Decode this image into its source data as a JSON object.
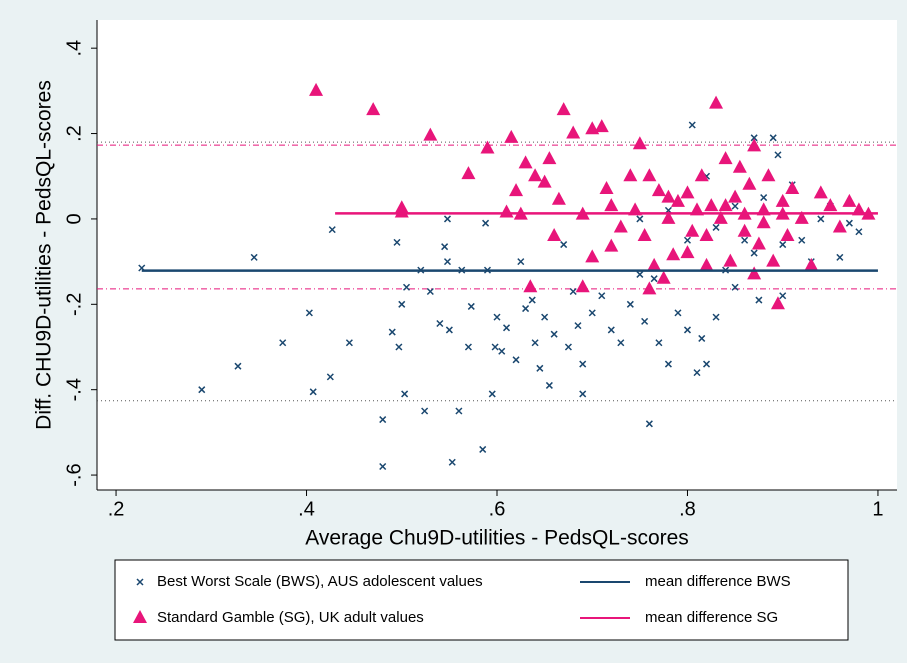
{
  "chart_data": {
    "type": "scatter",
    "y_label": "Diff. CHU9D-utilities - PedsQL-scores",
    "x_label": "Average Chu9D-utilities - PedsQL-scores",
    "xlim": [
      0.18,
      1.02
    ],
    "ylim": [
      -0.635,
      0.466
    ],
    "xticks": [
      {
        "value": 0.2,
        "label": ".2"
      },
      {
        "value": 0.4,
        "label": ".4"
      },
      {
        "value": 0.6,
        "label": ".6"
      },
      {
        "value": 0.8,
        "label": ".8"
      },
      1
    ],
    "yticks": [
      {
        "value": -0.6,
        "label": "-.6"
      },
      {
        "value": -0.4,
        "label": "-.4"
      },
      {
        "value": -0.2,
        "label": "-.2"
      },
      0,
      {
        "value": 0.2,
        "label": ".2"
      },
      {
        "value": 0.4,
        "label": ".4"
      }
    ],
    "series": [
      {
        "name": "Best Worst Scale (BWS), AUS adolescent values",
        "color": "#1a476f",
        "marker": "x",
        "x": [
          0.227,
          0.29,
          0.328,
          0.345,
          0.375,
          0.403,
          0.407,
          0.425,
          0.427,
          0.445,
          0.48,
          0.48,
          0.49,
          0.495,
          0.497,
          0.5,
          0.503,
          0.505,
          0.52,
          0.524,
          0.53,
          0.54,
          0.545,
          0.548,
          0.548,
          0.55,
          0.553,
          0.56,
          0.563,
          0.57,
          0.573,
          0.585,
          0.588,
          0.59,
          0.595,
          0.598,
          0.6,
          0.605,
          0.61,
          0.62,
          0.625,
          0.63,
          0.637,
          0.64,
          0.645,
          0.65,
          0.655,
          0.66,
          0.67,
          0.675,
          0.68,
          0.685,
          0.69,
          0.69,
          0.7,
          0.71,
          0.72,
          0.73,
          0.74,
          0.75,
          0.755,
          0.76,
          0.765,
          0.77,
          0.78,
          0.79,
          0.8,
          0.805,
          0.81,
          0.815,
          0.82,
          0.83,
          0.84,
          0.85,
          0.86,
          0.87,
          0.875,
          0.88,
          0.89,
          0.895,
          0.9,
          0.91,
          0.92,
          0.93,
          0.94,
          0.95,
          0.96,
          0.97,
          0.98,
          0.75,
          0.78,
          0.8,
          0.82,
          0.85,
          0.9,
          0.87,
          0.83
        ],
        "values": [
          -0.115,
          -0.4,
          -0.345,
          -0.09,
          -0.29,
          -0.22,
          -0.405,
          -0.37,
          -0.025,
          -0.29,
          -0.47,
          -0.58,
          -0.265,
          -0.055,
          -0.3,
          -0.2,
          -0.41,
          -0.16,
          -0.12,
          -0.45,
          -0.17,
          -0.245,
          -0.065,
          -0.1,
          0.0,
          -0.26,
          -0.57,
          -0.45,
          -0.12,
          -0.3,
          -0.205,
          -0.54,
          -0.01,
          -0.12,
          -0.41,
          -0.3,
          -0.23,
          -0.31,
          -0.255,
          -0.33,
          -0.1,
          -0.21,
          -0.19,
          -0.29,
          -0.35,
          -0.23,
          -0.39,
          -0.27,
          -0.06,
          -0.3,
          -0.17,
          -0.25,
          -0.41,
          -0.34,
          -0.22,
          -0.18,
          -0.26,
          -0.29,
          -0.2,
          -0.13,
          -0.24,
          -0.48,
          -0.14,
          -0.29,
          -0.34,
          -0.22,
          -0.26,
          0.22,
          -0.36,
          -0.28,
          -0.34,
          -0.23,
          -0.12,
          -0.16,
          -0.05,
          0.19,
          -0.19,
          0.05,
          0.19,
          0.15,
          -0.18,
          0.08,
          -0.05,
          -0.1,
          0.0,
          0.03,
          -0.09,
          -0.01,
          -0.03,
          0.0,
          0.02,
          -0.05,
          0.1,
          0.03,
          -0.06,
          -0.08,
          -0.02
        ]
      },
      {
        "name": "Standard Gamble (SG), UK adult values",
        "color": "#e8157a",
        "marker": "triangle",
        "x": [
          0.41,
          0.47,
          0.5,
          0.5,
          0.53,
          0.57,
          0.59,
          0.61,
          0.615,
          0.62,
          0.625,
          0.63,
          0.635,
          0.64,
          0.65,
          0.655,
          0.66,
          0.665,
          0.67,
          0.68,
          0.69,
          0.69,
          0.7,
          0.7,
          0.71,
          0.715,
          0.72,
          0.73,
          0.74,
          0.745,
          0.75,
          0.755,
          0.76,
          0.765,
          0.77,
          0.775,
          0.78,
          0.785,
          0.79,
          0.8,
          0.805,
          0.81,
          0.815,
          0.82,
          0.825,
          0.83,
          0.835,
          0.84,
          0.845,
          0.85,
          0.855,
          0.86,
          0.865,
          0.87,
          0.875,
          0.88,
          0.885,
          0.89,
          0.895,
          0.9,
          0.905,
          0.91,
          0.92,
          0.93,
          0.94,
          0.95,
          0.96,
          0.97,
          0.98,
          0.99,
          0.8,
          0.78,
          0.72,
          0.84,
          0.86,
          0.88,
          0.9,
          0.87,
          0.82,
          0.76
        ],
        "values": [
          0.3,
          0.255,
          0.025,
          0.015,
          0.195,
          0.105,
          0.165,
          0.015,
          0.19,
          0.065,
          0.01,
          0.13,
          -0.16,
          0.1,
          0.085,
          0.14,
          -0.04,
          0.045,
          0.255,
          0.2,
          0.01,
          -0.16,
          0.21,
          -0.09,
          0.215,
          0.07,
          -0.065,
          -0.02,
          0.1,
          0.02,
          0.175,
          -0.04,
          -0.165,
          -0.11,
          0.065,
          -0.14,
          0.0,
          -0.085,
          0.04,
          0.06,
          -0.03,
          0.02,
          0.1,
          -0.04,
          0.03,
          0.27,
          0.0,
          0.14,
          -0.1,
          0.05,
          0.12,
          -0.03,
          0.08,
          0.17,
          -0.06,
          0.02,
          0.1,
          -0.1,
          -0.2,
          0.04,
          -0.04,
          0.07,
          0.0,
          -0.11,
          0.06,
          0.03,
          -0.02,
          0.04,
          0.02,
          0.01,
          -0.08,
          0.05,
          0.03,
          0.03,
          0.01,
          -0.01,
          0.01,
          -0.13,
          -0.11,
          0.1
        ]
      }
    ],
    "lines": [
      {
        "name": "mean difference BWS",
        "color": "#1a476f",
        "x": [
          0.227,
          1.0
        ],
        "values": [
          -0.121,
          -0.121
        ]
      },
      {
        "name": "mean difference SG",
        "color": "#e8157a",
        "x": [
          0.43,
          1.0
        ],
        "values": [
          0.013,
          0.013
        ]
      }
    ],
    "reference_lines": [
      {
        "value": 0.173,
        "color": "#e8157a",
        "style": "dashdot"
      },
      {
        "value": -0.164,
        "color": "#e8157a",
        "style": "dashdot"
      },
      {
        "value": 0.18,
        "color": "#555555",
        "style": "dotted"
      },
      {
        "value": -0.426,
        "color": "#555555",
        "style": "dotted"
      }
    ]
  }
}
